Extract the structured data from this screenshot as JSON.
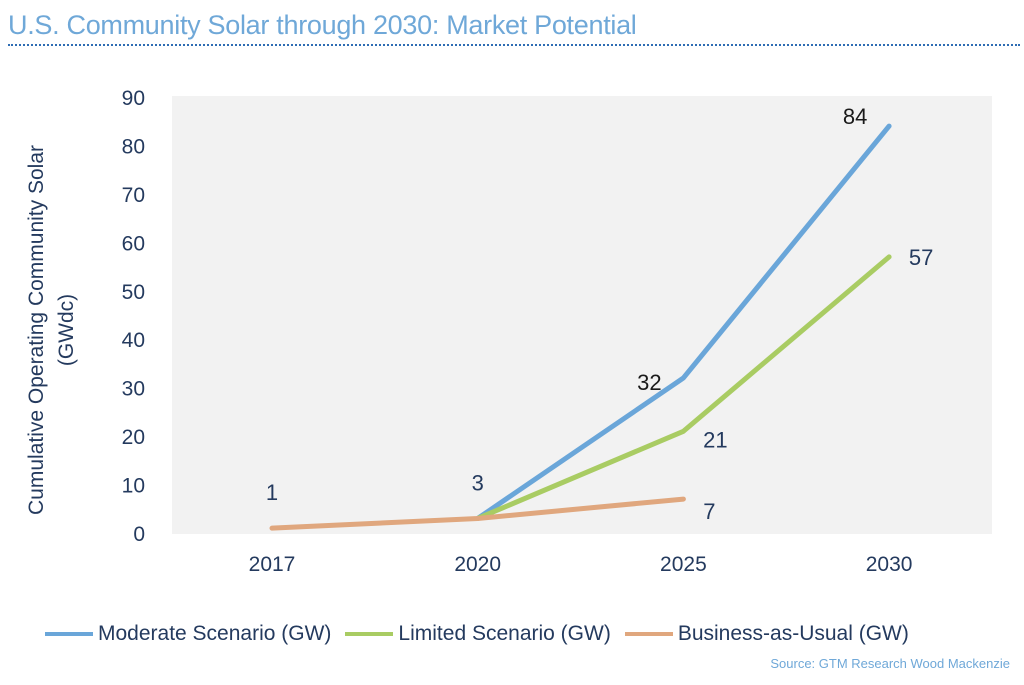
{
  "title": "U.S. Community Solar through 2030: Market Potential",
  "source": "Source: GTM Research Wood Mackenzie",
  "chart_data": {
    "type": "line",
    "title": "U.S. Community Solar through 2030: Market Potential",
    "xlabel": "",
    "ylabel": "Cumulative Operating Community Solar (GWdc)",
    "ylabel_lines": [
      "Cumulative Operating Community Solar",
      "(GWdc)"
    ],
    "categories": [
      "2017",
      "2020",
      "2025",
      "2030"
    ],
    "ylim": [
      0,
      90
    ],
    "yticks": [
      0,
      10,
      20,
      30,
      40,
      50,
      60,
      70,
      80,
      90
    ],
    "grid": false,
    "legend_position": "bottom",
    "plot_background": "#f2f2f2",
    "series": [
      {
        "name": "Moderate Scenario (GW)",
        "color": "#6aa6d9",
        "values": [
          null,
          3,
          32,
          84
        ],
        "labels": [
          null,
          null,
          "32",
          "84"
        ],
        "label_color": "#1a1a1a"
      },
      {
        "name": "Limited Scenario (GW)",
        "color": "#a9cc63",
        "values": [
          null,
          3,
          21,
          57
        ],
        "labels": [
          null,
          null,
          "21",
          "57"
        ],
        "label_color": "#243a5e"
      },
      {
        "name": "Business-as-Usual (GW)",
        "color": "#e0a77e",
        "values": [
          1,
          3,
          7,
          null
        ],
        "labels": [
          "1",
          "3",
          "7",
          null
        ],
        "label_color": "#243a5e"
      }
    ]
  }
}
